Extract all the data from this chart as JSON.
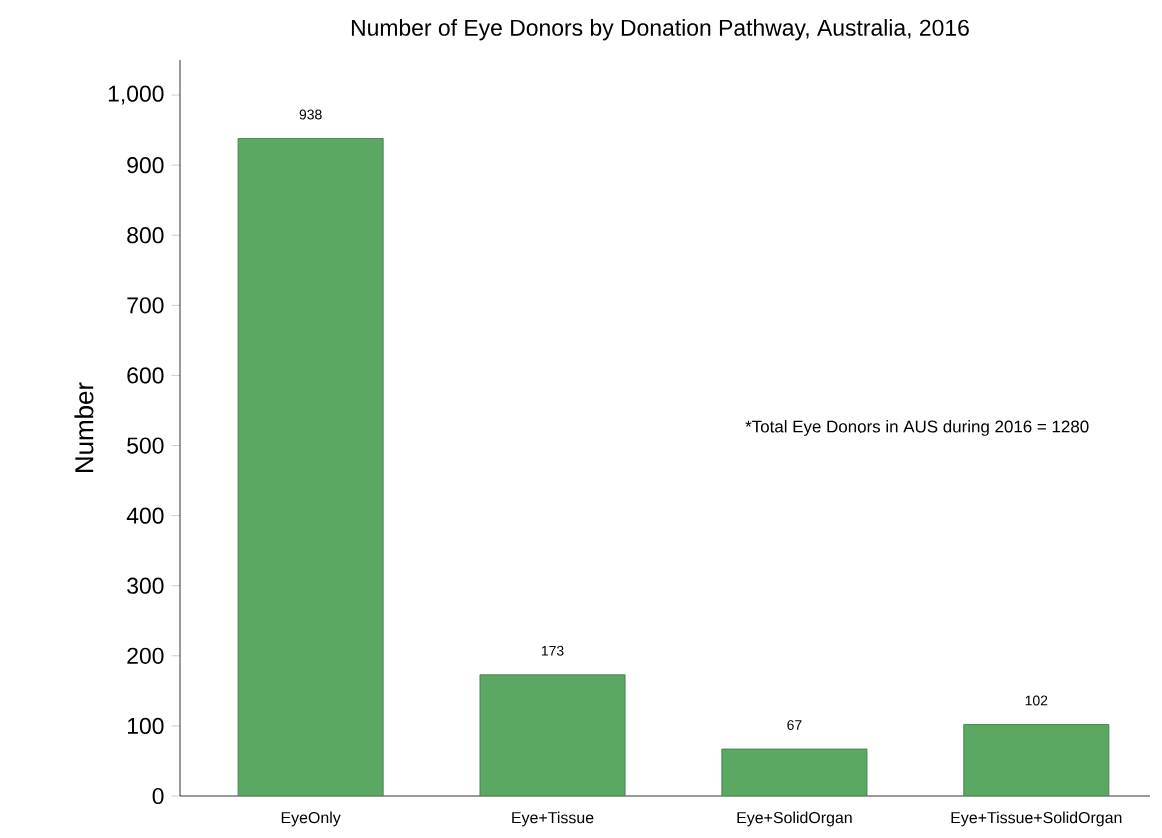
{
  "chart_data": {
    "type": "bar",
    "title": "Number of Eye Donors by Donation Pathway, Australia, 2016",
    "ylabel": "Number",
    "categories": [
      "EyeOnly",
      "Eye+Tissue",
      "Eye+SolidOrgan",
      "Eye+Tissue+SolidOrgan"
    ],
    "values": [
      938,
      173,
      67,
      102
    ],
    "color": "#5aa862",
    "ylim": [
      0,
      1050
    ],
    "yticks": [
      0,
      100,
      200,
      300,
      400,
      500,
      600,
      700,
      800,
      900,
      {
        "value": 1000,
        "label": "1,000"
      }
    ],
    "data_labels": true,
    "grid": false,
    "annotations": [
      "*Total Eye Donors in AUS during 2016 = 1280"
    ]
  }
}
